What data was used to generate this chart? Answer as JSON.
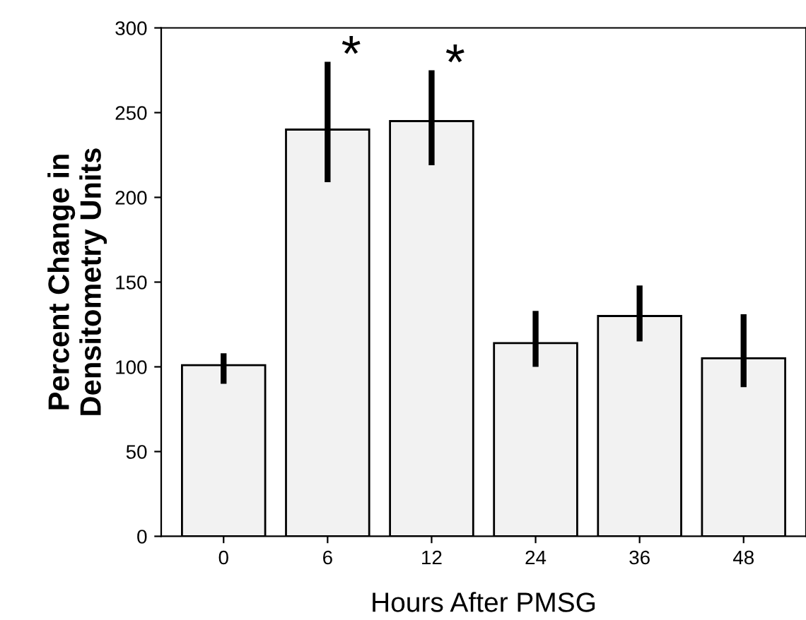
{
  "chart_data": {
    "type": "bar",
    "xlabel": "Hours After PMSG",
    "ylabel": "Percent Change in\nDensitometry Units",
    "categories": [
      "0",
      "6",
      "12",
      "24",
      "36",
      "48"
    ],
    "values": [
      101,
      240,
      245,
      114,
      130,
      105
    ],
    "errors": [
      [
        90,
        108
      ],
      [
        209,
        280
      ],
      [
        219,
        275
      ],
      [
        100,
        133
      ],
      [
        115,
        148
      ],
      [
        88,
        131
      ]
    ],
    "color": "#f2f2f2",
    "ylim": [
      0,
      300
    ],
    "yticks": [
      0,
      50,
      100,
      150,
      200,
      250,
      300
    ],
    "grid": false,
    "annotations": [
      {
        "text": "*",
        "x": "6",
        "y": 280
      },
      {
        "text": "*",
        "x": "12",
        "y": 275
      }
    ]
  }
}
